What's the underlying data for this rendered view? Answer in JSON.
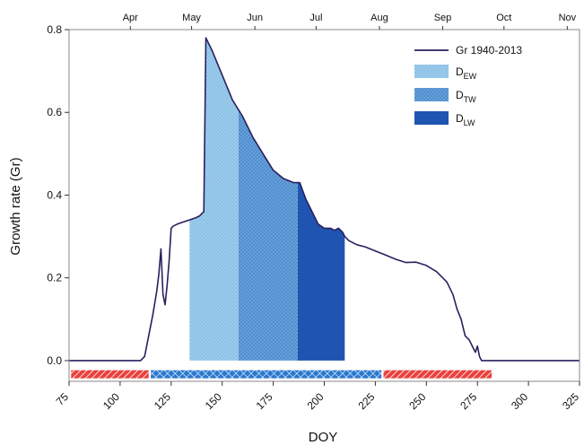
{
  "chart_data": {
    "type": "area",
    "xlabel": "DOY",
    "ylabel": "Growth rate (Gr)",
    "xlim": [
      75,
      325
    ],
    "ylim": [
      -0.05,
      0.8
    ],
    "xticks": [
      75,
      100,
      125,
      150,
      175,
      200,
      225,
      250,
      275,
      300,
      325
    ],
    "yticks": [
      0.0,
      0.2,
      0.4,
      0.6,
      0.8
    ],
    "ytick_labels": [
      "0.0",
      "0.2",
      "0.4",
      "0.6",
      "0.8"
    ],
    "months": [
      {
        "label": "Apr",
        "doy": 105
      },
      {
        "label": "May",
        "doy": 135
      },
      {
        "label": "Jun",
        "doy": 166
      },
      {
        "label": "Jul",
        "doy": 196
      },
      {
        "label": "Aug",
        "doy": 227
      },
      {
        "label": "Sep",
        "doy": 258
      },
      {
        "label": "Oct",
        "doy": 288
      },
      {
        "label": "Nov",
        "doy": 319
      }
    ],
    "series": [
      {
        "name": "Gr 1940-2013",
        "color": "#2a1f5e",
        "x": [
          75,
          110,
          112,
          116,
          118,
          119,
          120,
          121,
          122,
          123,
          124,
          125,
          126,
          128,
          131,
          134,
          137,
          139,
          140,
          141,
          142,
          145,
          150,
          155,
          160,
          165,
          170,
          175,
          180,
          185,
          188,
          191,
          194,
          197,
          200,
          203,
          205,
          207,
          209,
          210,
          212,
          216,
          220,
          225,
          230,
          235,
          240,
          245,
          250,
          255,
          260,
          263,
          265,
          267,
          269,
          271,
          273,
          274,
          275,
          276,
          277,
          280,
          285,
          325
        ],
        "y": [
          0.0,
          0.0,
          0.01,
          0.11,
          0.17,
          0.21,
          0.27,
          0.16,
          0.135,
          0.18,
          0.24,
          0.32,
          0.325,
          0.33,
          0.335,
          0.34,
          0.345,
          0.35,
          0.355,
          0.36,
          0.78,
          0.75,
          0.69,
          0.63,
          0.59,
          0.54,
          0.5,
          0.46,
          0.44,
          0.43,
          0.43,
          0.39,
          0.36,
          0.33,
          0.32,
          0.32,
          0.315,
          0.32,
          0.31,
          0.3,
          0.29,
          0.28,
          0.275,
          0.265,
          0.255,
          0.245,
          0.237,
          0.238,
          0.23,
          0.215,
          0.19,
          0.16,
          0.125,
          0.1,
          0.06,
          0.05,
          0.03,
          0.02,
          0.035,
          0.01,
          0.0,
          0.0,
          0.0,
          0.0
        ]
      }
    ],
    "shaded_periods": [
      {
        "legend_main": "D",
        "legend_sub": "EW",
        "x_start": 134,
        "x_end": 158,
        "color": "#8cc2e6",
        "pattern": "dots"
      },
      {
        "legend_main": "D",
        "legend_sub": "TW",
        "x_start": 158,
        "x_end": 187,
        "color": "#4f8fd0",
        "pattern": "dots"
      },
      {
        "legend_main": "D",
        "legend_sub": "LW",
        "x_start": 187,
        "x_end": 210,
        "color": "#1f55b0",
        "pattern": "none"
      }
    ],
    "season_bars": [
      {
        "x_start": 76,
        "x_end": 114,
        "color": "#e8413d",
        "pattern": "hatch"
      },
      {
        "x_start": 115,
        "x_end": 228,
        "color": "#2a78cf",
        "pattern": "crosshatch"
      },
      {
        "x_start": 229,
        "x_end": 282,
        "color": "#e8413d",
        "pattern": "hatch"
      }
    ],
    "grid": false,
    "legend_position": "top-right"
  }
}
